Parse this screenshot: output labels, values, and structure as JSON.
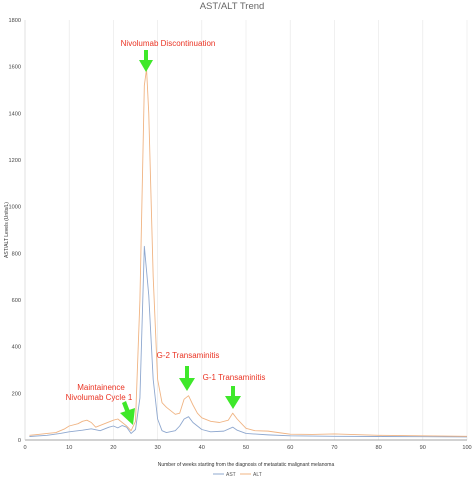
{
  "chart_data": {
    "type": "line",
    "title": "AST/ALT Trend",
    "xlabel": "Number of weeks starting from the diagnosis of metastatic malignant melanoma",
    "ylabel": "AST/ALT Levels (Units/L)",
    "xlim": [
      0,
      100
    ],
    "ylim": [
      0,
      1800
    ],
    "x_ticks": [
      0,
      10,
      20,
      30,
      40,
      50,
      60,
      70,
      80,
      90,
      100
    ],
    "y_ticks": [
      0,
      200,
      400,
      600,
      800,
      1000,
      1200,
      1400,
      1600,
      1800
    ],
    "grid": "vertical",
    "legend_position": "bottom",
    "series": [
      {
        "name": "AST",
        "color": "#8fa8cf",
        "points": [
          [
            1,
            15
          ],
          [
            5,
            20
          ],
          [
            8,
            28
          ],
          [
            10,
            35
          ],
          [
            13,
            42
          ],
          [
            15,
            48
          ],
          [
            17,
            40
          ],
          [
            19,
            55
          ],
          [
            20,
            60
          ],
          [
            21,
            52
          ],
          [
            22,
            62
          ],
          [
            23,
            55
          ],
          [
            24,
            28
          ],
          [
            25,
            45
          ],
          [
            26,
            180
          ],
          [
            27,
            830
          ],
          [
            28,
            620
          ],
          [
            29,
            260
          ],
          [
            30,
            90
          ],
          [
            31,
            40
          ],
          [
            32,
            32
          ],
          [
            34,
            40
          ],
          [
            35,
            60
          ],
          [
            36,
            90
          ],
          [
            37,
            100
          ],
          [
            38,
            75
          ],
          [
            40,
            45
          ],
          [
            42,
            35
          ],
          [
            45,
            38
          ],
          [
            47,
            55
          ],
          [
            48,
            42
          ],
          [
            50,
            28
          ],
          [
            55,
            22
          ],
          [
            60,
            18
          ],
          [
            70,
            16
          ],
          [
            80,
            15
          ],
          [
            90,
            14
          ],
          [
            100,
            13
          ]
        ]
      },
      {
        "name": "ALT",
        "color": "#f0b483",
        "points": [
          [
            1,
            20
          ],
          [
            3,
            24
          ],
          [
            5,
            28
          ],
          [
            7,
            32
          ],
          [
            9,
            48
          ],
          [
            10,
            60
          ],
          [
            12,
            70
          ],
          [
            13,
            80
          ],
          [
            14,
            85
          ],
          [
            15,
            75
          ],
          [
            16,
            55
          ],
          [
            18,
            70
          ],
          [
            20,
            85
          ],
          [
            21,
            90
          ],
          [
            22,
            75
          ],
          [
            23,
            60
          ],
          [
            24,
            40
          ],
          [
            25,
            80
          ],
          [
            26,
            600
          ],
          [
            27,
            1520
          ],
          [
            27.5,
            1590
          ],
          [
            28,
            1400
          ],
          [
            29,
            700
          ],
          [
            30,
            260
          ],
          [
            31,
            160
          ],
          [
            32,
            140
          ],
          [
            33,
            125
          ],
          [
            34,
            110
          ],
          [
            35,
            115
          ],
          [
            36,
            175
          ],
          [
            37,
            190
          ],
          [
            38,
            150
          ],
          [
            39,
            115
          ],
          [
            40,
            95
          ],
          [
            42,
            80
          ],
          [
            44,
            75
          ],
          [
            46,
            85
          ],
          [
            47,
            115
          ],
          [
            48,
            90
          ],
          [
            49,
            70
          ],
          [
            50,
            50
          ],
          [
            52,
            40
          ],
          [
            55,
            38
          ],
          [
            58,
            30
          ],
          [
            60,
            25
          ],
          [
            65,
            24
          ],
          [
            70,
            26
          ],
          [
            80,
            20
          ],
          [
            90,
            18
          ],
          [
            100,
            16
          ]
        ]
      }
    ],
    "annotations": [
      {
        "text": "Nivolumab Discontinuation",
        "x": 27.5,
        "y": 1595
      },
      {
        "text": "G-2 Transaminitis",
        "x": 37,
        "y": 190
      },
      {
        "text": "G-1 Transaminitis",
        "x": 47,
        "y": 115
      },
      {
        "text": "Maintainence",
        "x": 24,
        "y": 40
      },
      {
        "text": "Nivolumab Cycle 1",
        "x": 24,
        "y": 40
      }
    ]
  }
}
